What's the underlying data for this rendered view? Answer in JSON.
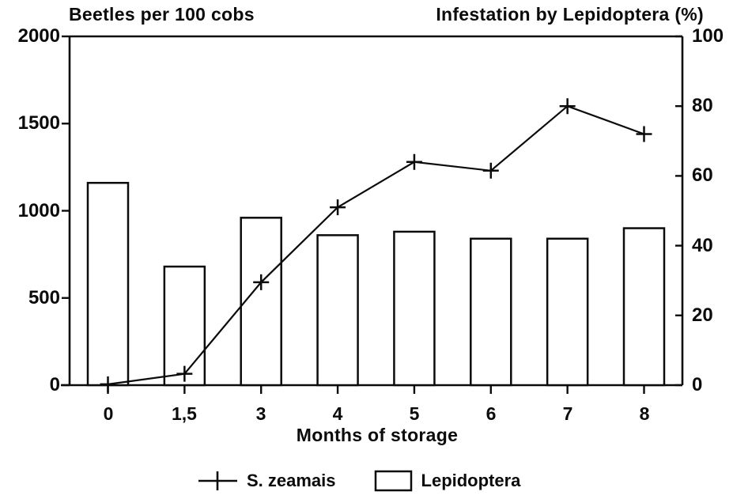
{
  "chart_data": {
    "type": "combo",
    "description": "Dual-axis chart: line series of beetle counts and bar series of Lepidoptera infestation over months of storage",
    "categories": [
      "0",
      "1,5",
      "3",
      "4",
      "5",
      "6",
      "7",
      "8"
    ],
    "x_axis": {
      "title": "Months of storage"
    },
    "left_axis": {
      "title": "Beetles per 100 cobs",
      "min": 0,
      "max": 2000,
      "ticks": [
        0,
        500,
        1000,
        1500,
        2000
      ]
    },
    "right_axis": {
      "title": "Infestation by Lepidoptera (%)",
      "min": 0,
      "max": 100,
      "ticks": [
        0,
        20,
        40,
        60,
        80,
        100
      ]
    },
    "series": [
      {
        "name": "S. zeamais",
        "type": "line",
        "axis": "left",
        "marker": "plus",
        "values": [
          5,
          65,
          590,
          1020,
          1280,
          1230,
          1600,
          1440
        ]
      },
      {
        "name": "Lepidoptera",
        "type": "bar",
        "axis": "right",
        "bar_fill": "open",
        "values": [
          58,
          34,
          48,
          43,
          44,
          42,
          42,
          45
        ]
      }
    ],
    "legend_position": "bottom",
    "grid": false,
    "colors": {
      "ink": "#0b0b0b",
      "background": "#ffffff"
    }
  }
}
